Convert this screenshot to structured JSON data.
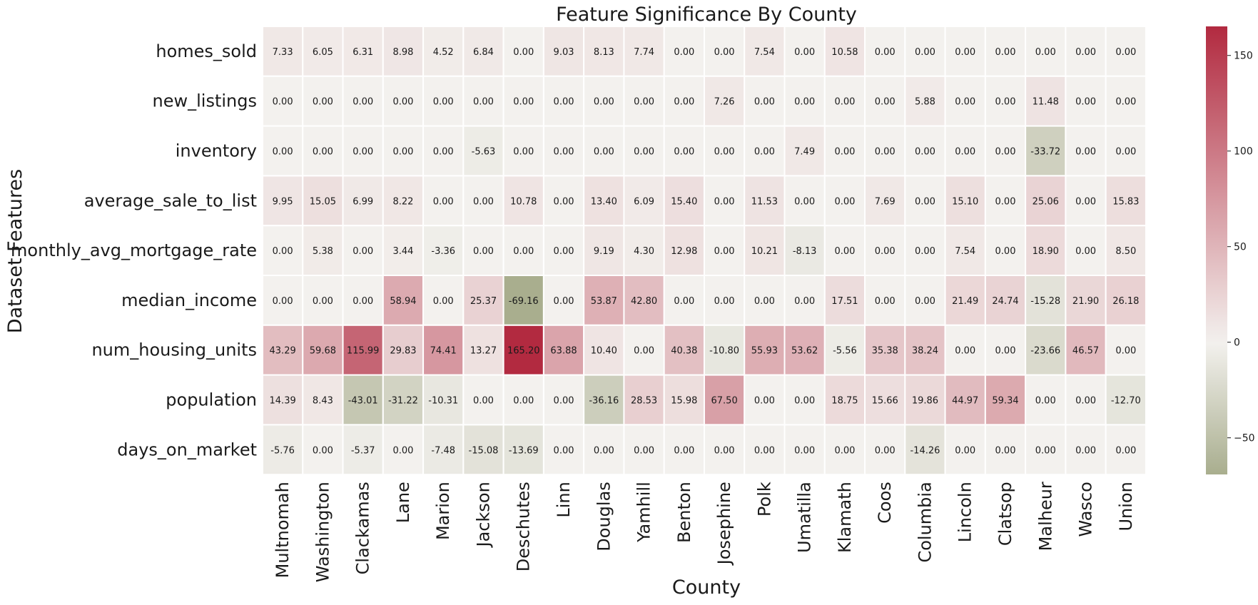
{
  "chart_data": {
    "type": "heatmap",
    "title": "Feature Significance By County",
    "xlabel": "County",
    "ylabel": "Dataset Features",
    "x_categories": [
      "Multnomah",
      "Washington",
      "Clackamas",
      "Lane",
      "Marion",
      "Jackson",
      "Deschutes",
      "Linn",
      "Douglas",
      "Yamhill",
      "Benton",
      "Josephine",
      "Polk",
      "Umatilla",
      "Klamath",
      "Coos",
      "Columbia",
      "Lincoln",
      "Clatsop",
      "Malheur",
      "Wasco",
      "Union"
    ],
    "y_categories": [
      "homes_sold",
      "new_listings",
      "inventory",
      "average_sale_to_list",
      "monthly_avg_mortgage_rate",
      "median_income",
      "num_housing_units",
      "population",
      "days_on_market"
    ],
    "values": [
      [
        7.33,
        6.05,
        6.31,
        8.98,
        4.52,
        6.84,
        0.0,
        9.03,
        8.13,
        7.74,
        0.0,
        0.0,
        7.54,
        0.0,
        10.58,
        0.0,
        0.0,
        0.0,
        0.0,
        0.0,
        0.0,
        0.0
      ],
      [
        0.0,
        0.0,
        0.0,
        0.0,
        0.0,
        0.0,
        0.0,
        0.0,
        0.0,
        0.0,
        0.0,
        7.26,
        0.0,
        0.0,
        0.0,
        0.0,
        5.88,
        0.0,
        0.0,
        11.48,
        0.0,
        0.0
      ],
      [
        0.0,
        0.0,
        0.0,
        0.0,
        0.0,
        -5.63,
        0.0,
        0.0,
        0.0,
        0.0,
        0.0,
        0.0,
        0.0,
        7.49,
        0.0,
        0.0,
        0.0,
        0.0,
        0.0,
        -33.72,
        0.0,
        0.0
      ],
      [
        9.95,
        15.05,
        6.99,
        8.22,
        0.0,
        0.0,
        10.78,
        0.0,
        13.4,
        6.09,
        15.4,
        0.0,
        11.53,
        0.0,
        0.0,
        7.69,
        0.0,
        15.1,
        0.0,
        25.06,
        0.0,
        15.83
      ],
      [
        0.0,
        5.38,
        0.0,
        3.44,
        -3.36,
        0.0,
        0.0,
        0.0,
        9.19,
        4.3,
        12.98,
        0.0,
        10.21,
        -8.13,
        0.0,
        0.0,
        0.0,
        7.54,
        0.0,
        18.9,
        0.0,
        8.5
      ],
      [
        0.0,
        0.0,
        0.0,
        58.94,
        0.0,
        25.37,
        -69.16,
        0.0,
        53.87,
        42.8,
        0.0,
        0.0,
        0.0,
        0.0,
        17.51,
        0.0,
        0.0,
        21.49,
        24.74,
        -15.28,
        21.9,
        26.18
      ],
      [
        43.29,
        59.68,
        115.99,
        29.83,
        74.41,
        13.27,
        165.2,
        63.88,
        10.4,
        0.0,
        40.38,
        -10.8,
        55.93,
        53.62,
        -5.56,
        35.38,
        38.24,
        0.0,
        0.0,
        -23.66,
        46.57,
        0.0
      ],
      [
        14.39,
        8.43,
        -43.01,
        -31.22,
        -10.31,
        0.0,
        0.0,
        0.0,
        -36.16,
        28.53,
        15.98,
        67.5,
        0.0,
        0.0,
        18.75,
        15.66,
        19.86,
        44.97,
        59.34,
        0.0,
        0.0,
        -12.7
      ],
      [
        -5.76,
        0.0,
        -5.37,
        0.0,
        -7.48,
        -15.08,
        -13.69,
        0.0,
        0.0,
        0.0,
        0.0,
        0.0,
        0.0,
        0.0,
        0.0,
        0.0,
        -14.26,
        0.0,
        0.0,
        0.0,
        0.0,
        0.0
      ]
    ],
    "value_format": "2 decimals",
    "vmin": -69.16,
    "vmax": 165.2,
    "center": 0,
    "colormap": {
      "negative": "#a9ae8e",
      "zero": "#f3f1ee",
      "positive": "#b22a40"
    },
    "cell_gridline_color": "#ffffff",
    "colorbar": {
      "ticks": [
        -50,
        0,
        50,
        100,
        150
      ]
    }
  }
}
